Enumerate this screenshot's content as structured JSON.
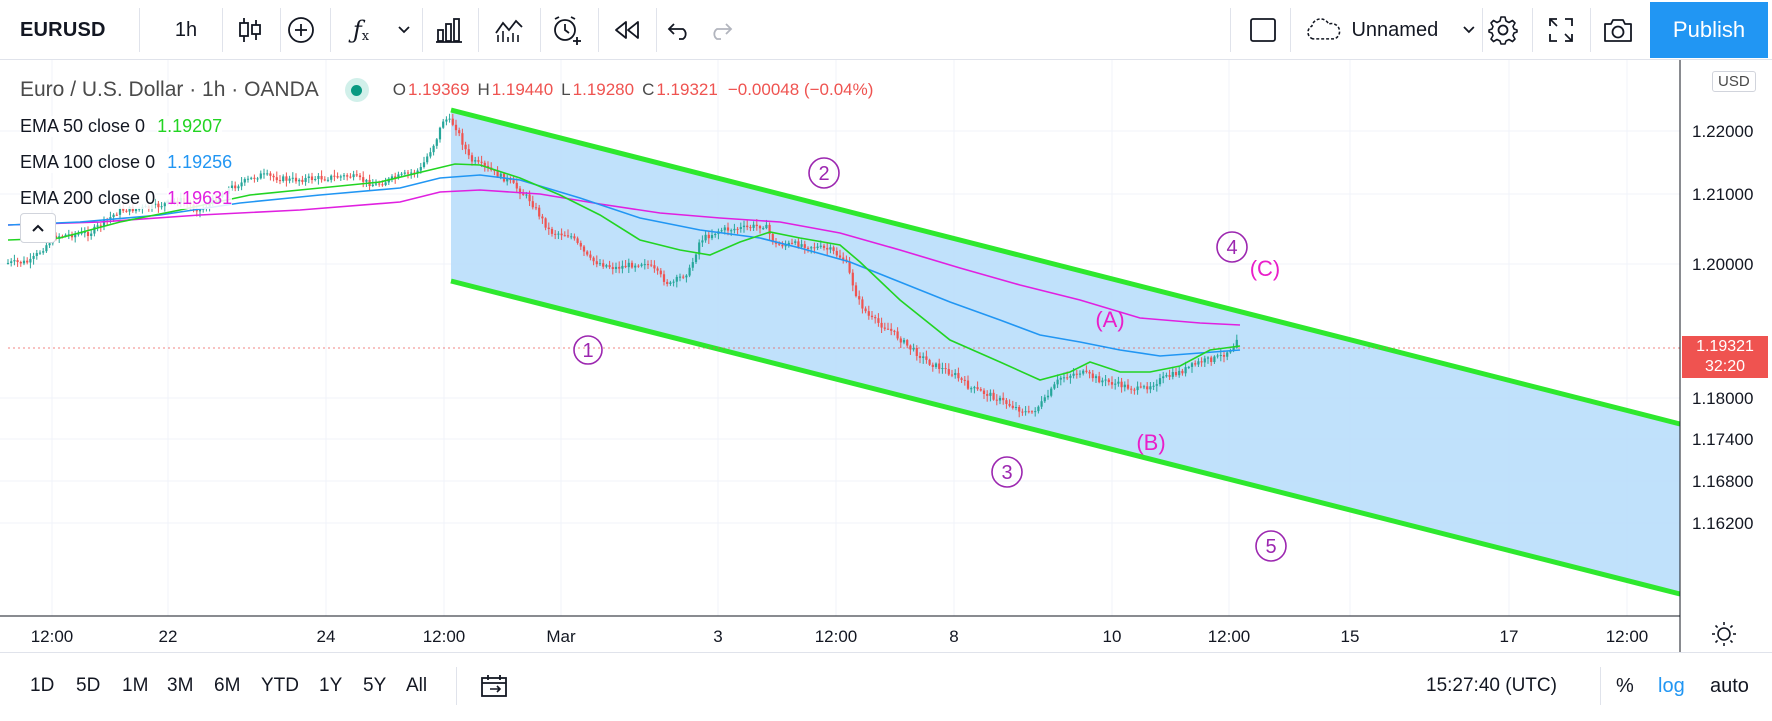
{
  "toolbar": {
    "symbol": "EURUSD",
    "interval": "1h",
    "layout_name": "Unnamed",
    "publish_label": "Publish",
    "icons": [
      "candles-icon",
      "add-indicator-icon",
      "fx-indicators-icon",
      "chevron-down-icon",
      "bars-compare-icon",
      "templates-icon",
      "alert-icon",
      "replay-icon",
      "undo-icon",
      "redo-icon",
      "fullscreen-box-icon",
      "cloud-icon",
      "settings-icon",
      "expand-icon",
      "camera-icon"
    ]
  },
  "legend": {
    "series_title": "Euro / U.S. Dollar · 1h · OANDA",
    "ohlc": [
      {
        "key": "O",
        "value": "1.19369"
      },
      {
        "key": "H",
        "value": "1.19440"
      },
      {
        "key": "L",
        "value": "1.19280"
      },
      {
        "key": "C",
        "value": "1.19321"
      }
    ],
    "change": "−0.00048 (−0.04%)",
    "indicators": [
      {
        "label": "EMA 50 close 0",
        "value": "1.19207",
        "color": "#22d422"
      },
      {
        "label": "EMA 100 close 0",
        "value": "1.19256",
        "color": "#2196f3"
      },
      {
        "label": "EMA 200 close 0",
        "value": "1.19631",
        "color": "#e020e0"
      }
    ]
  },
  "price_axis": {
    "currency": "USD",
    "ticks": [
      "1.22000",
      "1.21000",
      "1.20000",
      "1.18000",
      "1.17400",
      "1.16800",
      "1.16200"
    ],
    "last_price": "1.19321",
    "countdown": "32:20"
  },
  "time_axis": {
    "ticks": [
      "12:00",
      "22",
      "24",
      "12:00",
      "Mar",
      "3",
      "12:00",
      "8",
      "10",
      "12:00",
      "15",
      "17",
      "12:00"
    ]
  },
  "wave_labels": [
    "1",
    "2",
    "3",
    "4",
    "5",
    "(A)",
    "(B)",
    "(C)"
  ],
  "colors": {
    "channel_line": "#2ee82e",
    "channel_fill": "#bbdefb",
    "wave_impulse": "#9c27b0",
    "wave_corrective": "#e91ec9",
    "candle_up": "#26a69a",
    "candle_down": "#ef5350",
    "accent": "#2196f3"
  },
  "bottom": {
    "ranges": [
      "1D",
      "5D",
      "1M",
      "3M",
      "6M",
      "YTD",
      "1Y",
      "5Y",
      "All"
    ],
    "clock": "15:27:40 (UTC)",
    "percent_label": "%",
    "log_label": "log",
    "auto_label": "auto"
  }
}
